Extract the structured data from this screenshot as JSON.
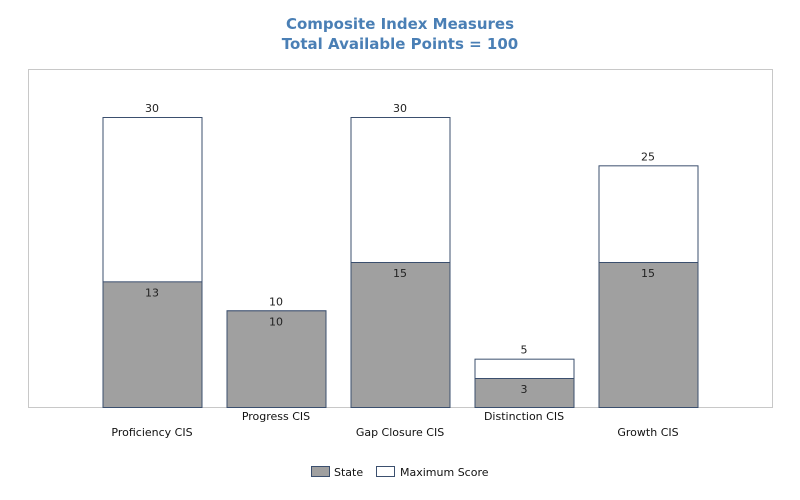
{
  "chart_data": {
    "type": "bar",
    "title": "Composite Index Measures",
    "subtitle": "Total Available Points = 100",
    "categories": [
      "Proficiency CIS",
      "Progress CIS",
      "Gap Closure CIS",
      "Distinction CIS",
      "Growth CIS"
    ],
    "series": [
      {
        "name": "State",
        "values": [
          13,
          10,
          15,
          3,
          15
        ],
        "color": "#a0a0a0"
      },
      {
        "name": "Maximum Score",
        "values": [
          30,
          10,
          30,
          5,
          25
        ],
        "color": "#ffffff"
      }
    ],
    "ylim": [
      0,
      30
    ],
    "grid": false,
    "legend": "bottom"
  }
}
